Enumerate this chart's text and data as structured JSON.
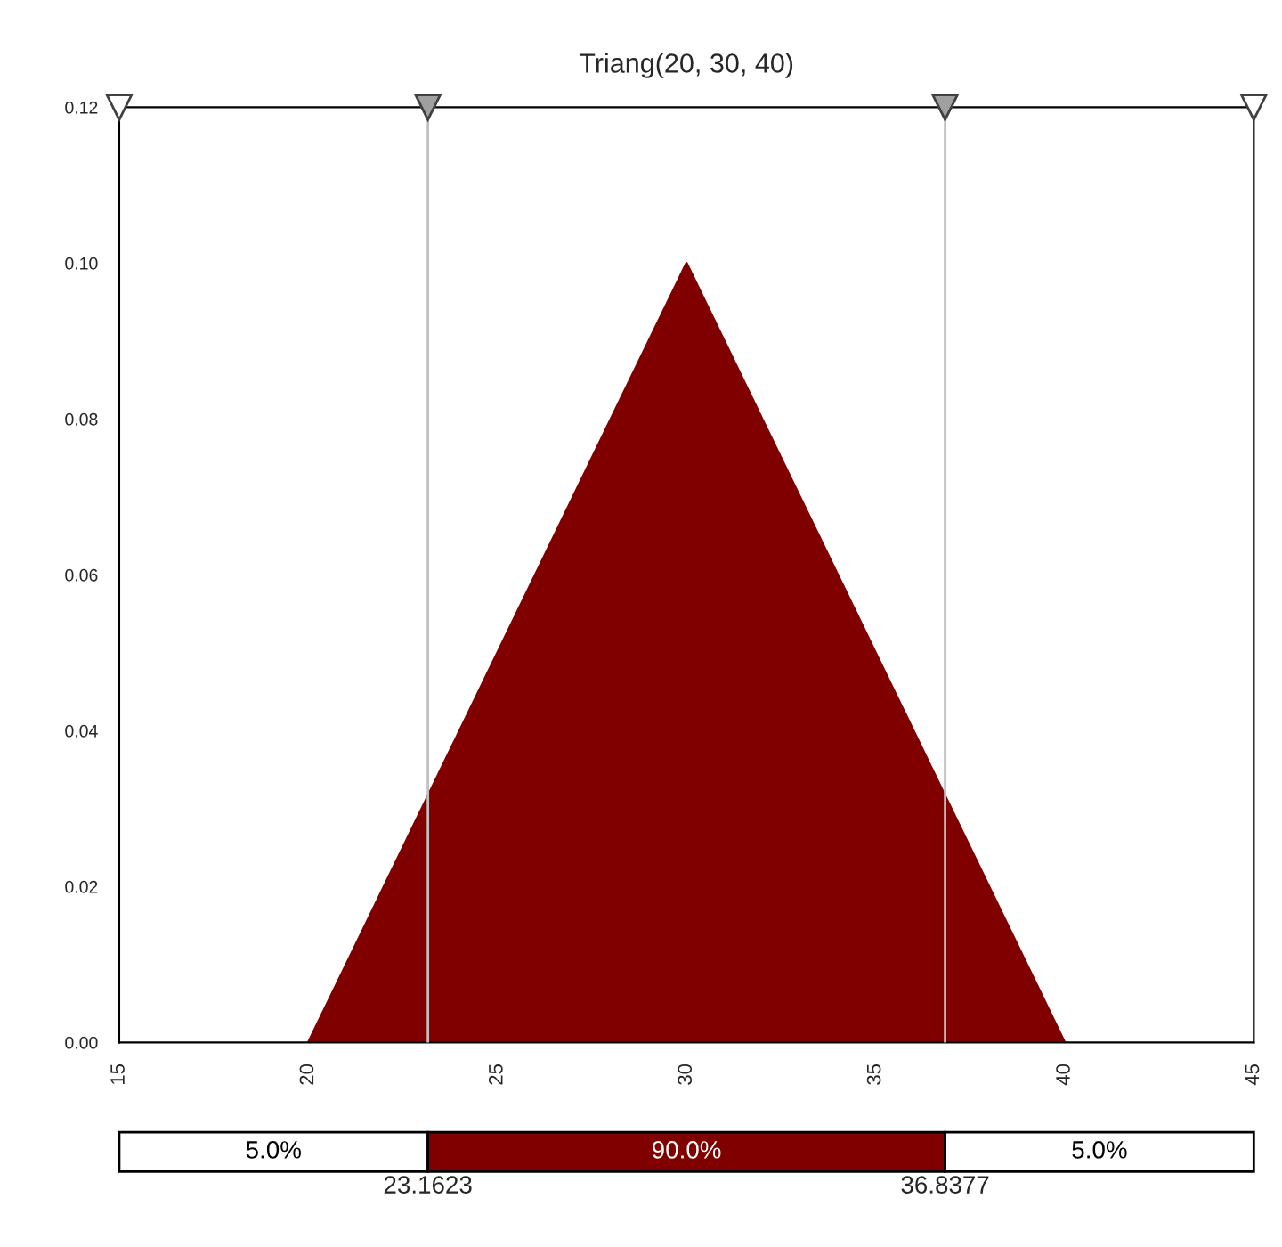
{
  "chart_data": {
    "type": "area",
    "title": "Triang(20, 30, 40)",
    "x": [
      20,
      30,
      40
    ],
    "series": [
      {
        "color": "#800000",
        "values": [
          0,
          0.1,
          0
        ]
      }
    ],
    "xlim": [
      15,
      45
    ],
    "xticks": [
      15,
      20,
      25,
      30,
      35,
      40,
      45
    ],
    "ylim": [
      0,
      0.12
    ],
    "yticks": [
      {
        "value": 0,
        "label": "0.00"
      },
      {
        "value": 0.02,
        "label": "0.02"
      },
      {
        "value": 0.04,
        "label": "0.04"
      },
      {
        "value": 0.06,
        "label": "0.06"
      },
      {
        "value": 0.08,
        "label": "0.08"
      },
      {
        "value": 0.1,
        "label": "0.10"
      },
      {
        "value": 0.12,
        "label": "0.12"
      }
    ],
    "grid": false,
    "legend": false,
    "ref_lines": [
      {
        "axis": "x",
        "value": 23.1623,
        "color": "#c0c0c0"
      },
      {
        "axis": "x",
        "value": 36.8377,
        "color": "#c0c0c0"
      }
    ],
    "annotations": [
      "5.0%",
      "90.0%",
      "5.0%",
      "23.1623",
      "36.8377"
    ]
  }
}
